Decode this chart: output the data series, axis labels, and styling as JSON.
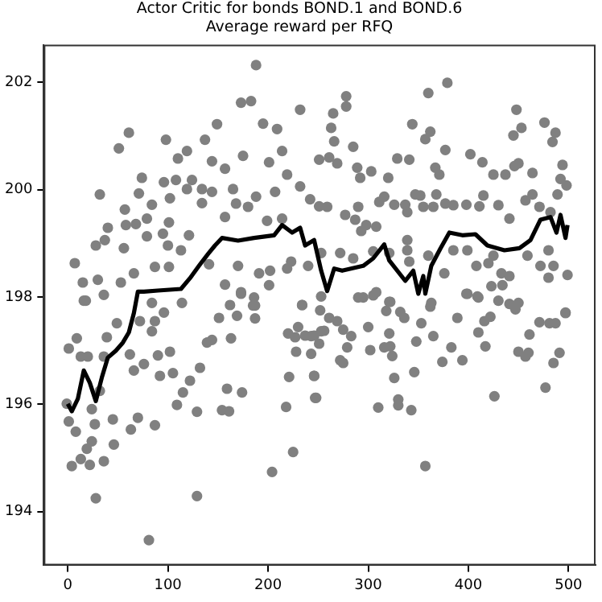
{
  "chart_data": {
    "type": "scatter",
    "title": "Actor Critic for bonds BOND.1 and BOND.6",
    "subtitle": "Average reward per RFQ",
    "xlim": [
      -24,
      527
    ],
    "ylim": [
      193.0,
      202.7
    ],
    "xticks": [
      0,
      100,
      200,
      300,
      400,
      500
    ],
    "yticks": [
      194,
      196,
      198,
      200,
      202
    ],
    "grid": false,
    "legend": false,
    "marker": "circle",
    "series": [
      {
        "color": "#808080",
        "x": [
          188,
          173,
          183,
          232,
          149,
          61,
          51,
          98,
          137,
          195,
          209,
          110,
          119,
          144,
          157,
          175,
          201,
          214,
          251,
          74,
          32,
          71,
          96,
          108,
          124,
          119,
          134,
          144,
          165,
          188,
          207,
          219,
          232,
          242,
          57,
          84,
          102,
          134,
          168,
          180,
          40,
          58,
          68,
          79,
          101,
          157,
          199,
          214,
          28,
          37,
          56,
          79,
          95,
          121,
          100,
          113,
          7,
          15,
          30,
          18,
          36,
          53,
          66,
          87,
          101,
          84,
          114,
          141,
          157,
          173,
          186,
          185,
          191,
          202,
          201,
          219,
          162,
          234,
          170,
          223,
          240,
          16,
          -1,
          1,
          8,
          4,
          13,
          22,
          19,
          24,
          28,
          27,
          36,
          45,
          46,
          63,
          70,
          87,
          81,
          129,
          129,
          109,
          115,
          122,
          132,
          154,
          161,
          159,
          174,
          204,
          225,
          218,
          221,
          248,
          246,
          1,
          9,
          13,
          20,
          24,
          32,
          36,
          39,
          49,
          62,
          66,
          72,
          76,
          84,
          87,
          90,
          92,
          96,
          102,
          105,
          139,
          144,
          151,
          163,
          169,
          173,
          187,
          187,
          220,
          227,
          228,
          230,
          234,
          237,
          243,
          251,
          253,
          243,
          379,
          360,
          278,
          278,
          265,
          263,
          266,
          285,
          261,
          269,
          289,
          292,
          303,
          320,
          329,
          341,
          344,
          357,
          362,
          377,
          367,
          371,
          402,
          414,
          425,
          437,
          446,
          450,
          464,
          445,
          453,
          448,
          476,
          487,
          484,
          494,
          492,
          498,
          251,
          259,
          277,
          287,
          290,
          298,
          293,
          308,
          311,
          316,
          326,
          337,
          339,
          347,
          352,
          355,
          365,
          368,
          377,
          385,
          398,
          411,
          415,
          430,
          441,
          457,
          464,
          471,
          489,
          482,
          253,
          272,
          285,
          305,
          321,
          339,
          339,
          341,
          360,
          376,
          385,
          399,
          408,
          420,
          425,
          433,
          441,
          434,
          459,
          472,
          480,
          485,
          499,
          480,
          295,
          308,
          253,
          321,
          363,
          399,
          410,
          423,
          450,
          497,
          252,
          261,
          269,
          246,
          256,
          275,
          283,
          279,
          272,
          275,
          246,
          247,
          290,
          305,
          300,
          302,
          310,
          316,
          321,
          322,
          324,
          318,
          322,
          326,
          330,
          330,
          343,
          332,
          336,
          346,
          348,
          353,
          357,
          362,
          365,
          374,
          383,
          389,
          394,
          398,
          410,
          409,
          416,
          417,
          422,
          426,
          430,
          441,
          447,
          450,
          457,
          460,
          461,
          471,
          481,
          487,
          497,
          477,
          485,
          491
        ],
        "values": [
          202.32,
          201.62,
          201.65,
          201.49,
          201.22,
          201.06,
          200.77,
          200.93,
          200.93,
          201.23,
          201.13,
          200.58,
          200.72,
          200.53,
          200.39,
          200.63,
          200.51,
          200.72,
          200.56,
          200.22,
          199.91,
          199.93,
          200.14,
          200.18,
          200.18,
          200.01,
          200.01,
          199.96,
          200.01,
          199.87,
          199.96,
          200.28,
          200.06,
          199.82,
          199.63,
          199.72,
          199.84,
          199.75,
          199.74,
          199.68,
          199.29,
          199.34,
          199.36,
          199.46,
          199.39,
          199.49,
          199.42,
          199.46,
          198.96,
          199.06,
          198.91,
          199.13,
          199.18,
          199.15,
          198.96,
          198.87,
          198.63,
          198.27,
          198.32,
          197.93,
          198.04,
          198.27,
          198.44,
          198.56,
          198.56,
          197.89,
          197.89,
          198.61,
          198.23,
          198.09,
          197.99,
          197.84,
          198.44,
          198.49,
          198.22,
          198.53,
          197.85,
          197.85,
          198.58,
          198.66,
          198.58,
          197.93,
          196.01,
          195.68,
          195.49,
          194.85,
          194.98,
          194.87,
          195.17,
          195.31,
          194.25,
          195.63,
          194.94,
          195.72,
          195.25,
          195.53,
          195.75,
          195.61,
          193.47,
          194.29,
          195.86,
          195.99,
          196.22,
          196.44,
          196.68,
          195.89,
          195.87,
          196.29,
          196.22,
          194.74,
          195.11,
          195.95,
          196.51,
          196.12,
          196.53,
          197.04,
          197.23,
          196.89,
          196.89,
          195.91,
          196.25,
          196.89,
          197.25,
          197.51,
          196.93,
          196.63,
          197.55,
          196.75,
          197.36,
          197.55,
          196.91,
          196.53,
          197.71,
          196.98,
          196.58,
          197.15,
          197.2,
          197.61,
          197.23,
          197.65,
          198.06,
          197.6,
          197.84,
          197.32,
          197.25,
          196.98,
          197.44,
          197.85,
          197.28,
          197.27,
          197.13,
          197.36,
          196.94,
          201.99,
          201.8,
          201.74,
          201.55,
          201.42,
          201.15,
          200.9,
          200.8,
          200.6,
          200.49,
          200.41,
          200.22,
          200.34,
          200.22,
          200.58,
          200.56,
          201.22,
          200.94,
          201.08,
          200.74,
          200.41,
          200.28,
          200.66,
          200.51,
          200.28,
          200.28,
          200.44,
          200.49,
          200.31,
          201.01,
          201.15,
          201.49,
          201.25,
          201.06,
          200.89,
          200.46,
          200.2,
          200.08,
          199.69,
          199.68,
          199.53,
          199.44,
          199.68,
          199.34,
          199.23,
          199.31,
          199.77,
          199.87,
          199.72,
          199.72,
          199.58,
          199.91,
          199.89,
          199.68,
          199.68,
          199.91,
          199.74,
          199.71,
          199.72,
          199.69,
          199.89,
          199.71,
          199.46,
          199.8,
          199.91,
          199.68,
          199.91,
          199.58,
          198.82,
          198.82,
          198.72,
          198.85,
          198.82,
          199.06,
          198.87,
          198.66,
          198.77,
          198.44,
          198.87,
          198.87,
          198.58,
          198.63,
          198.77,
          198.44,
          198.39,
          198.22,
          198.77,
          198.58,
          198.87,
          198.58,
          198.41,
          198.36,
          197.99,
          198.09,
          198.01,
          197.91,
          197.89,
          198.06,
          197.99,
          198.2,
          197.89,
          197.7,
          197.75,
          197.61,
          197.55,
          197.28,
          197.37,
          197.39,
          197.27,
          197.06,
          196.82,
          196.77,
          196.53,
          196.12,
          197.99,
          198.03,
          197.44,
          197.01,
          195.94,
          197.06,
          197.32,
          197.08,
          196.9,
          197.74,
          197.91,
          196.49,
          196.09,
          195.98,
          195.89,
          197.72,
          197.61,
          196.6,
          197.17,
          197.51,
          194.85,
          197.82,
          197.27,
          196.79,
          197.06,
          197.61,
          196.82,
          198.06,
          197.34,
          198.01,
          197.55,
          197.08,
          197.63,
          196.15,
          197.93,
          197.87,
          197.77,
          196.98,
          196.89,
          196.96,
          197.3,
          197.53,
          197.51,
          197.51,
          197.71,
          196.31,
          196.77,
          196.96
        ]
      },
      {
        "type": "line",
        "marker": "none",
        "color": "#000000",
        "x": [
          0,
          4,
          10,
          16,
          22,
          28,
          34,
          40,
          48,
          55,
          61,
          66,
          70,
          76,
          90,
          113,
          122,
          131,
          140,
          147,
          154,
          170,
          186,
          206,
          214,
          224,
          232,
          237,
          246,
          253,
          259,
          266,
          274,
          295,
          305,
          316,
          321,
          337,
          345,
          350,
          355,
          357,
          363,
          372,
          381,
          394,
          407,
          419,
          436,
          451,
          462,
          472,
          482,
          488,
          492,
          497,
          499
        ],
        "values": [
          196.01,
          195.87,
          196.1,
          196.63,
          196.4,
          196.06,
          196.5,
          196.87,
          197.0,
          197.15,
          197.34,
          197.7,
          198.1,
          198.1,
          198.12,
          198.15,
          198.35,
          198.58,
          198.8,
          198.96,
          199.1,
          199.05,
          199.1,
          199.15,
          199.34,
          199.2,
          199.29,
          198.96,
          199.06,
          198.49,
          198.11,
          198.53,
          198.49,
          198.58,
          198.72,
          198.98,
          198.68,
          198.3,
          198.49,
          198.06,
          198.39,
          198.06,
          198.58,
          198.9,
          199.2,
          199.15,
          199.17,
          198.96,
          198.87,
          198.91,
          199.06,
          199.44,
          199.49,
          199.2,
          199.53,
          199.1,
          199.34
        ]
      }
    ]
  }
}
